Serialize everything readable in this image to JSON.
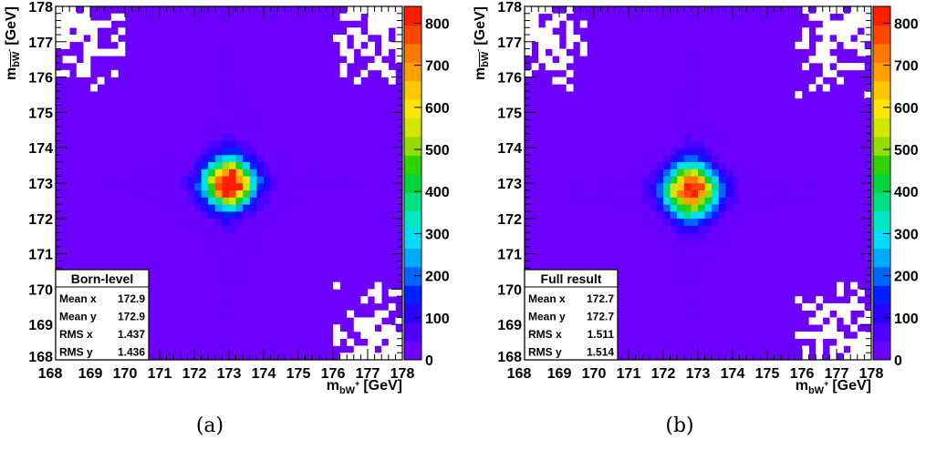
{
  "chart_data": [
    {
      "type": "heatmap",
      "panel_label": "(a)",
      "xlabel": {
        "main": "m",
        "sub": "bW",
        "sup": "+",
        "unit": "[GeV]"
      },
      "ylabel": {
        "main": "m",
        "sub": "bW",
        "sup": "-",
        "bar": true,
        "unit": "[GeV]"
      },
      "xlim": [
        168,
        178
      ],
      "ylim": [
        168,
        178
      ],
      "x_ticks": [
        "168",
        "169",
        "170",
        "171",
        "172",
        "173",
        "174",
        "175",
        "176",
        "177",
        "178"
      ],
      "y_ticks": [
        "168",
        "169",
        "170",
        "171",
        "172",
        "173",
        "174",
        "175",
        "176",
        "177",
        "178"
      ],
      "bins": 50,
      "z_range": [
        0,
        840
      ],
      "z_ticks": [
        "0",
        "100",
        "200",
        "300",
        "400",
        "500",
        "600",
        "700",
        "800"
      ],
      "peak": {
        "x": 173.0,
        "y": 173.0,
        "max": 830
      },
      "stats": {
        "title": "Born-level",
        "rows": [
          {
            "name": "Mean x",
            "value": "172.9"
          },
          {
            "name": "Mean y",
            "value": "172.9"
          },
          {
            "name": "RMS x",
            "value": "1.437"
          },
          {
            "name": "RMS y",
            "value": "1.436"
          }
        ]
      }
    },
    {
      "type": "heatmap",
      "panel_label": "(b)",
      "xlabel": {
        "main": "m",
        "sub": "bW",
        "sup": "+",
        "unit": "[GeV]"
      },
      "ylabel": {
        "main": "m",
        "sub": "bW",
        "sup": "-",
        "bar": true,
        "unit": "[GeV]"
      },
      "xlim": [
        168,
        178
      ],
      "ylim": [
        168,
        178
      ],
      "x_ticks": [
        "168",
        "169",
        "170",
        "171",
        "172",
        "173",
        "174",
        "175",
        "176",
        "177",
        "178"
      ],
      "y_ticks": [
        "168",
        "169",
        "170",
        "171",
        "172",
        "173",
        "174",
        "175",
        "176",
        "177",
        "178"
      ],
      "bins": 50,
      "z_range": [
        0,
        840
      ],
      "z_ticks": [
        "0",
        "100",
        "200",
        "300",
        "400",
        "500",
        "600",
        "700",
        "800"
      ],
      "peak": {
        "x": 172.8,
        "y": 172.8,
        "max": 720
      },
      "stats": {
        "title": "Full result",
        "rows": [
          {
            "name": "Mean x",
            "value": "172.7"
          },
          {
            "name": "Mean y",
            "value": "172.7"
          },
          {
            "name": "RMS x",
            "value": "1.511"
          },
          {
            "name": "RMS y",
            "value": "1.514"
          }
        ]
      }
    }
  ],
  "palette": [
    "#6b00ff",
    "#5000ff",
    "#2a00ff",
    "#0020ff",
    "#0066ff",
    "#00aaff",
    "#00dcff",
    "#00e6c8",
    "#00e082",
    "#00d53c",
    "#32d200",
    "#96dc00",
    "#d2e600",
    "#ffe600",
    "#ffc800",
    "#ffa000",
    "#ff7800",
    "#ff4600",
    "#ff1e00"
  ]
}
